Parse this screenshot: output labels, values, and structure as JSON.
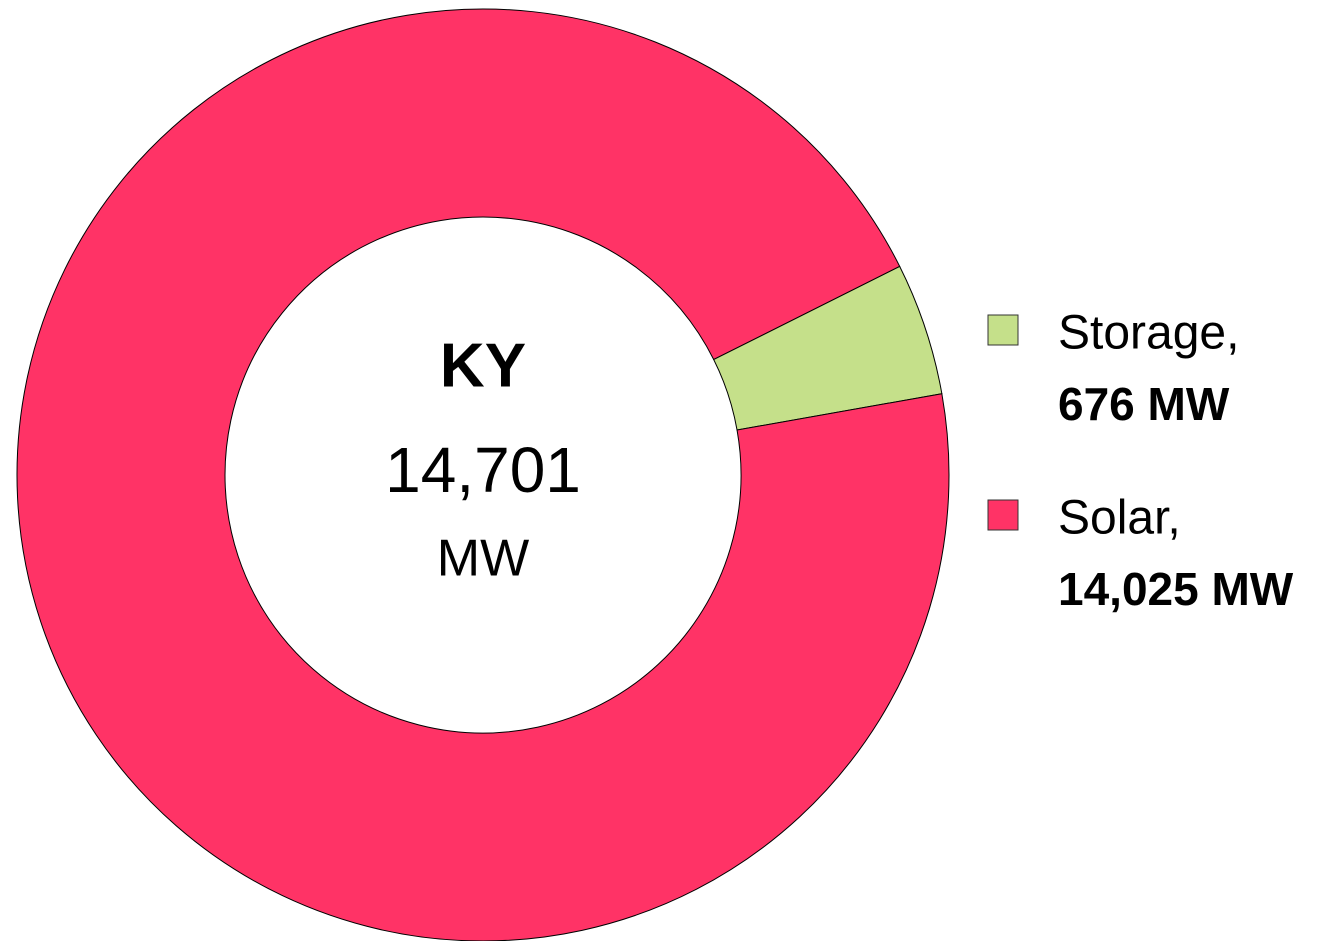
{
  "chart_data": {
    "type": "donut",
    "center_title": "KY",
    "center_total": 14701,
    "center_total_label": "14,701",
    "center_unit": "MW",
    "series": [
      {
        "name": "Storage,",
        "color": "#c5e08a",
        "values": [
          676
        ],
        "value_labels": [
          "676 MW"
        ]
      },
      {
        "name": "Solar,",
        "color": "#ff3366",
        "values": [
          14025
        ],
        "value_labels": [
          "14,025 MW"
        ]
      }
    ]
  }
}
